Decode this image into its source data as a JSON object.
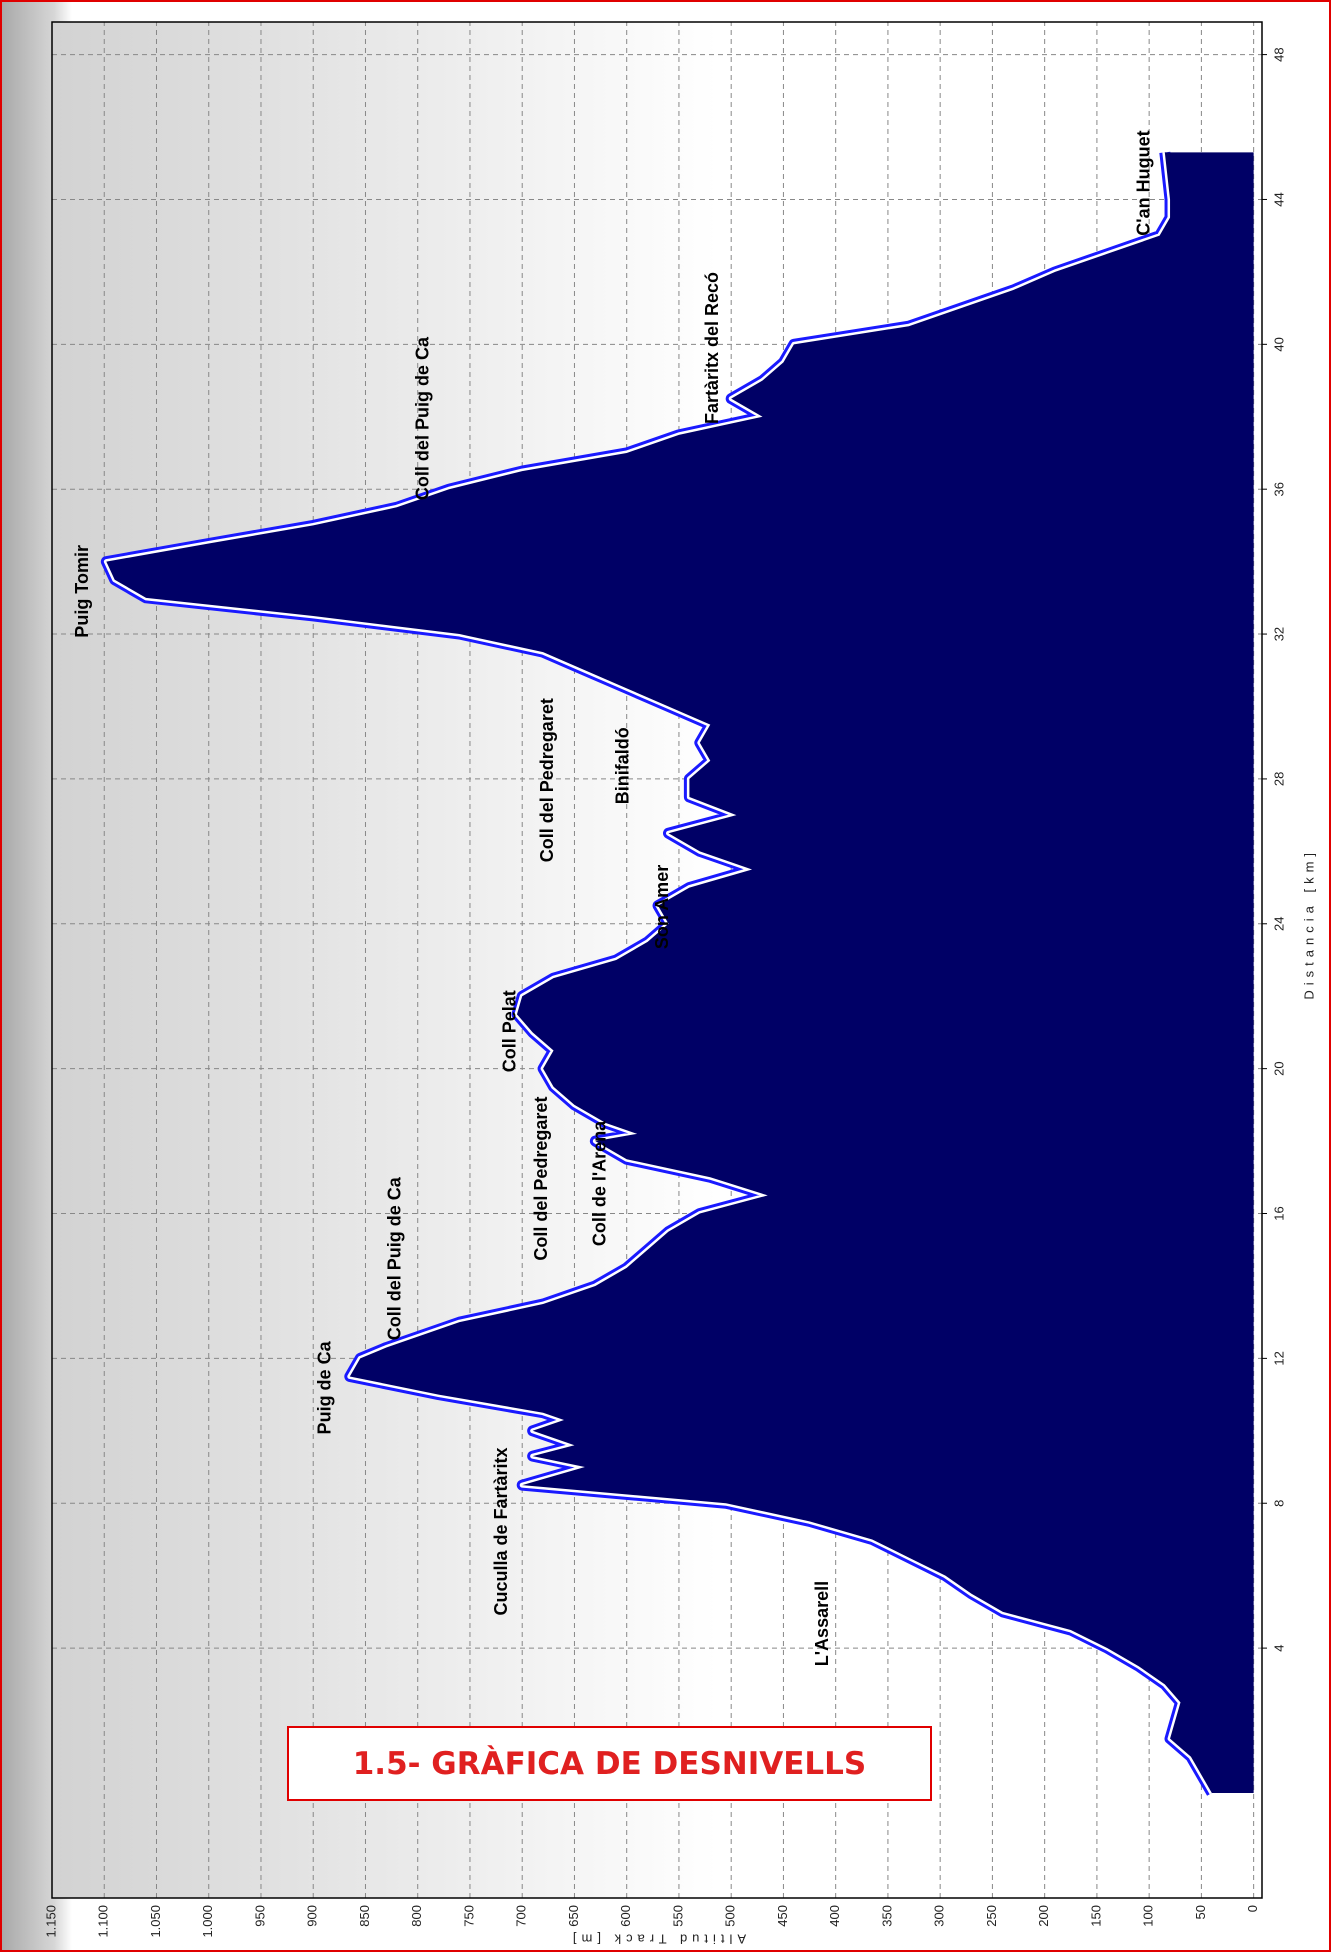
{
  "chart_data": {
    "type": "area",
    "title": "1.5- GRÀFICA DE DESNIVELLS",
    "xlabel": "Distancia [km]",
    "ylabel": "Altitud Track [m]",
    "x": [
      0,
      1,
      1.5,
      2,
      2.5,
      3,
      3.5,
      4,
      4.5,
      5,
      5.5,
      6,
      6.5,
      7,
      7.5,
      8,
      8.5,
      9,
      9.3,
      9.6,
      10,
      10.3,
      10.5,
      11,
      11.5,
      12,
      12.3,
      12.5,
      13,
      13.5,
      14,
      14.5,
      15,
      15.5,
      16,
      16.5,
      17,
      17.5,
      18,
      18.2,
      18.5,
      19,
      19.5,
      20,
      20.5,
      21,
      21.5,
      22,
      22.5,
      23,
      23.5,
      24,
      24.5,
      25,
      25.5,
      26,
      26.5,
      27,
      27.5,
      28,
      28.5,
      29,
      29.5,
      30,
      30.5,
      31,
      31.5,
      32,
      32.5,
      33,
      33.5,
      34,
      34.5,
      35,
      35.5,
      36,
      36.5,
      37,
      37.5,
      38,
      38.5,
      39,
      39.5,
      40,
      40.5,
      41,
      41.5,
      42,
      42.5,
      43,
      43.5,
      44,
      45.3
    ],
    "values": [
      40,
      60,
      80,
      75,
      70,
      85,
      110,
      140,
      175,
      240,
      270,
      295,
      330,
      365,
      425,
      505,
      700,
      640,
      690,
      650,
      690,
      660,
      680,
      780,
      865,
      855,
      830,
      810,
      760,
      680,
      630,
      600,
      580,
      560,
      530,
      465,
      520,
      600,
      630,
      590,
      620,
      650,
      670,
      680,
      670,
      690,
      705,
      700,
      670,
      610,
      580,
      560,
      570,
      540,
      480,
      530,
      560,
      495,
      540,
      540,
      520,
      530,
      520,
      560,
      600,
      640,
      680,
      760,
      900,
      1060,
      1090,
      1098,
      1000,
      900,
      820,
      770,
      700,
      600,
      550,
      470,
      500,
      470,
      450,
      440,
      330,
      280,
      230,
      190,
      140,
      90,
      80,
      80,
      85
    ],
    "color": "#000066",
    "line_color": "#1a1aff",
    "xlim": [
      -2.9,
      48.9
    ],
    "ylim": [
      -8,
      1150
    ],
    "xticks": [
      4,
      8,
      12,
      16,
      20,
      24,
      28,
      32,
      36,
      40,
      44,
      48
    ],
    "yticks": [
      0,
      50,
      100,
      150,
      200,
      250,
      300,
      350,
      400,
      450,
      500,
      550,
      600,
      650,
      700,
      750,
      800,
      850,
      900,
      950,
      {
        "value": 1000,
        "label": "1.000"
      },
      {
        "value": 1050,
        "label": "1.050"
      },
      {
        "value": 1100,
        "label": "1.100"
      },
      {
        "value": 1150,
        "label": "1.150"
      }
    ],
    "grid": true,
    "annotations": [
      "L'Assarell",
      "Cuculla de Fartàritx",
      "Puig de Ca",
      "Coll del Puig de Ca",
      "Coll del Pedregaret",
      "Coll de l'Arena",
      "Coll Pelat",
      "Son Amer",
      "Coll del Pedregaret",
      "Binifaldó",
      "Puig Tomir",
      "Coll del Puig de Ca",
      "Fartàritx del Recó",
      "C'an Huguet"
    ]
  }
}
